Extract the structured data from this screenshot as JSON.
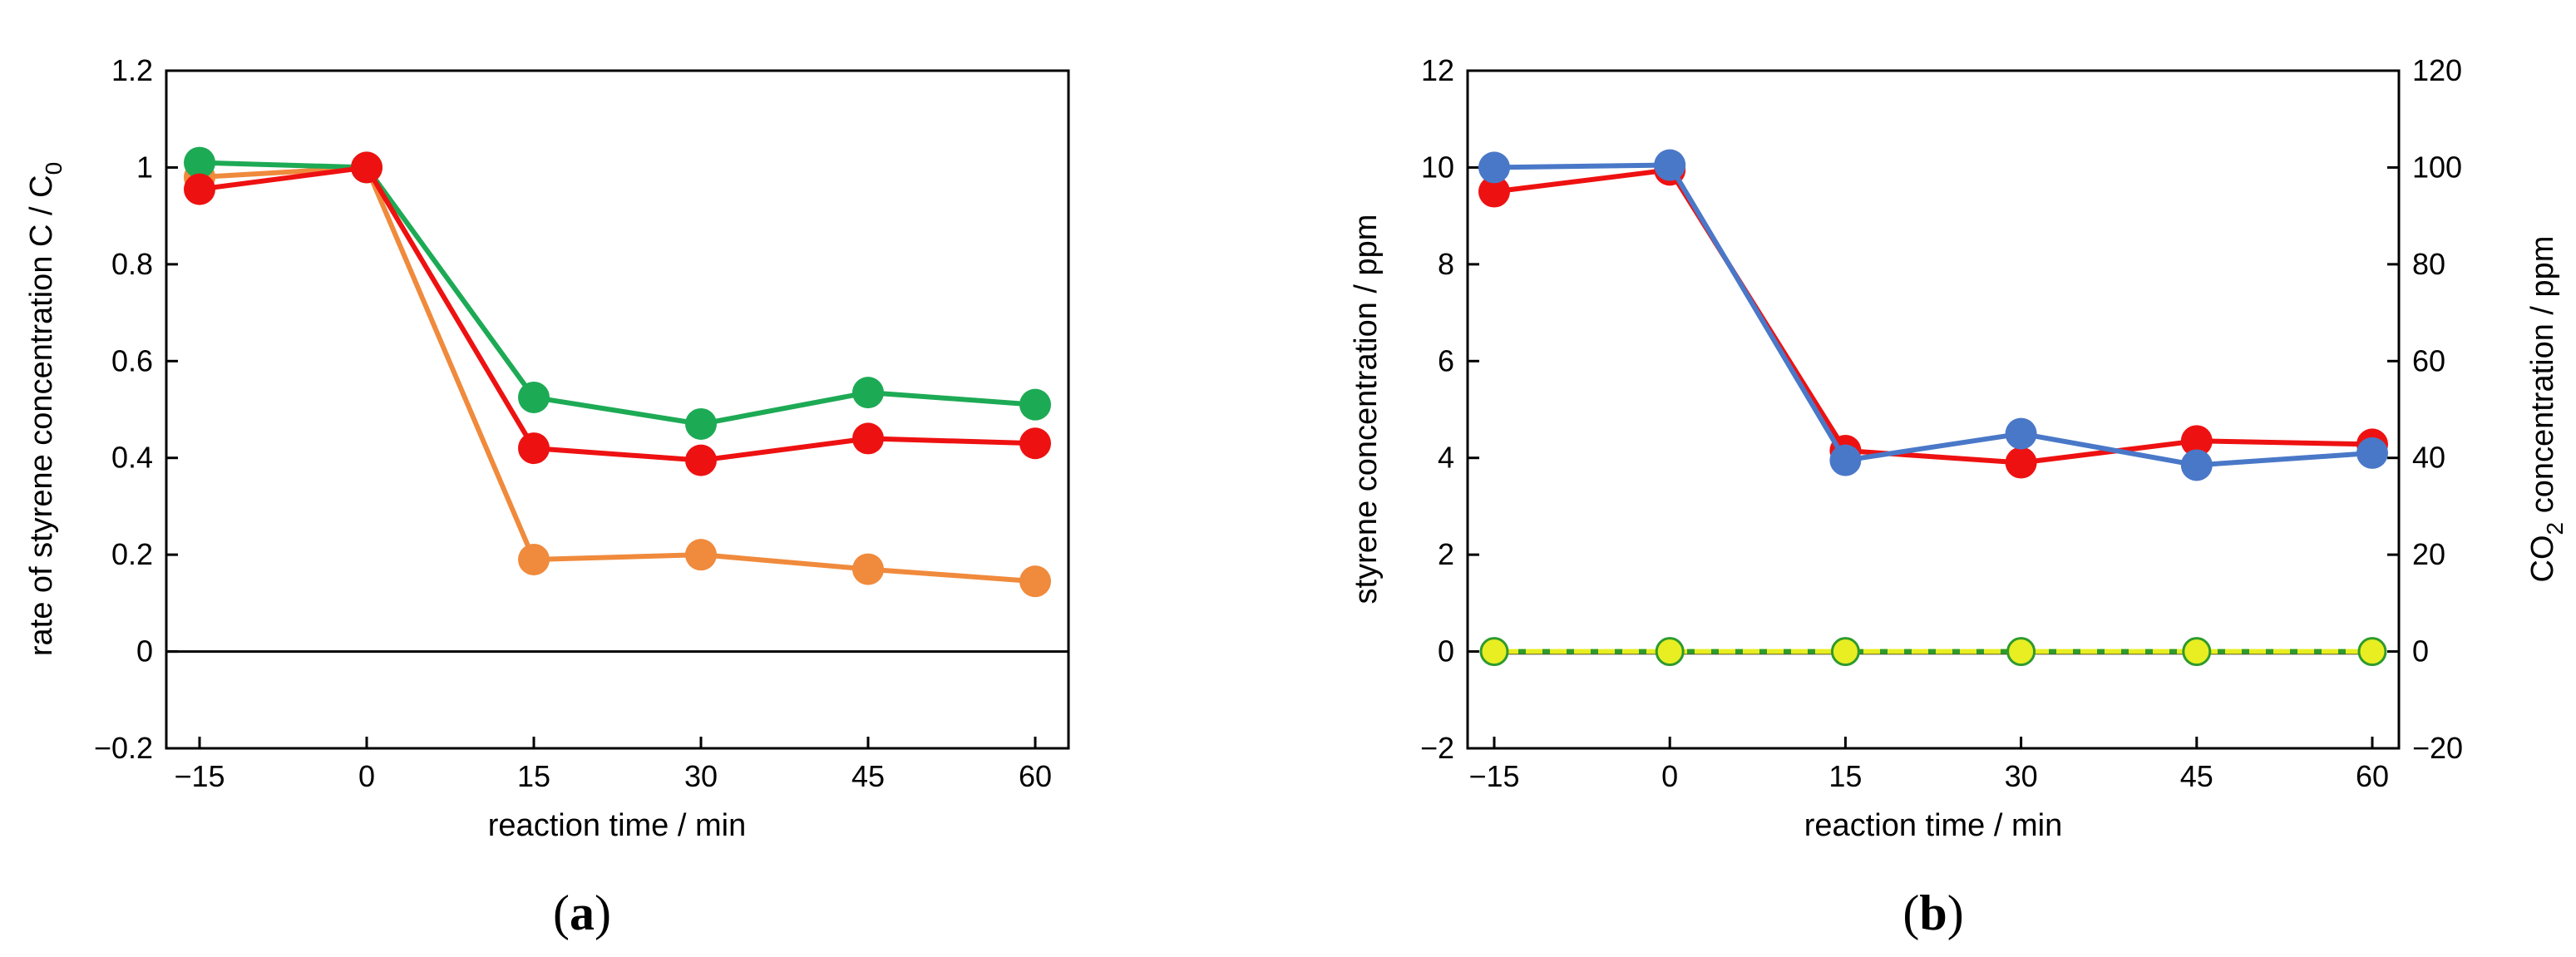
{
  "chart_data": [
    {
      "type": "line",
      "panel_label": "a",
      "x": [
        -15,
        0,
        15,
        30,
        45,
        60
      ],
      "x_ticks": [
        "−15",
        "0",
        "15",
        "30",
        "45",
        "60"
      ],
      "xlabel": "reaction time / min",
      "ylabel": {
        "main": "rate of styrene concentration C / C",
        "subscript": "0"
      },
      "ylim": [
        -0.2,
        1.2
      ],
      "y_ticks": [
        "−0.2",
        "0",
        "0.2",
        "0.4",
        "0.6",
        "0.8",
        "1",
        "1.2"
      ],
      "y_tick_values": [
        -0.2,
        0,
        0.2,
        0.4,
        0.6,
        0.8,
        1.0,
        1.2
      ],
      "zero_line": true,
      "series": [
        {
          "color": "#F08A3C",
          "values": [
            0.98,
            1.0,
            0.19,
            0.2,
            0.17,
            0.145
          ]
        },
        {
          "color": "#1DAA55",
          "values": [
            1.01,
            1.0,
            0.525,
            0.47,
            0.535,
            0.51
          ]
        },
        {
          "color": "#EE1111",
          "values": [
            0.955,
            1.0,
            0.42,
            0.395,
            0.44,
            0.43
          ]
        }
      ]
    },
    {
      "type": "line",
      "panel_label": "b",
      "x": [
        -15,
        0,
        15,
        30,
        45,
        60
      ],
      "x_ticks": [
        "−15",
        "0",
        "15",
        "30",
        "45",
        "60"
      ],
      "xlabel": "reaction time / min",
      "ylabel": "styrene concentration / ppm",
      "ylim": [
        -2,
        12
      ],
      "y_ticks": [
        "−2",
        "0",
        "2",
        "4",
        "6",
        "8",
        "10",
        "12"
      ],
      "y_tick_values": [
        -2,
        0,
        2,
        4,
        6,
        8,
        10,
        12
      ],
      "y2label": {
        "pre": "CO",
        "subscript": "2",
        "post": " concentration / ppm"
      },
      "y2lim": [
        -20,
        120
      ],
      "y2_ticks": [
        "−20",
        "0",
        "20",
        "40",
        "60",
        "80",
        "100",
        "120"
      ],
      "y2_tick_values": [
        -20,
        0,
        20,
        40,
        60,
        80,
        100,
        120
      ],
      "series": [
        {
          "color": "#EE1111",
          "axis": "left",
          "values": [
            9.5,
            9.95,
            4.15,
            3.9,
            4.35,
            4.28
          ]
        },
        {
          "color": "#4A78C8",
          "axis": "left",
          "values": [
            10.0,
            10.05,
            3.95,
            4.5,
            3.85,
            4.1
          ]
        },
        {
          "color": "#E8EE22",
          "axis": "right",
          "edge": "#2E9A2E",
          "dashed": true,
          "values": [
            0,
            0,
            0,
            0,
            0,
            0
          ]
        },
        {
          "color": "#000000",
          "axis": "right",
          "line_only": true,
          "values": [
            -0.3,
            -0.3,
            -0.3,
            -0.3,
            -0.3,
            -0.3
          ]
        }
      ]
    }
  ]
}
